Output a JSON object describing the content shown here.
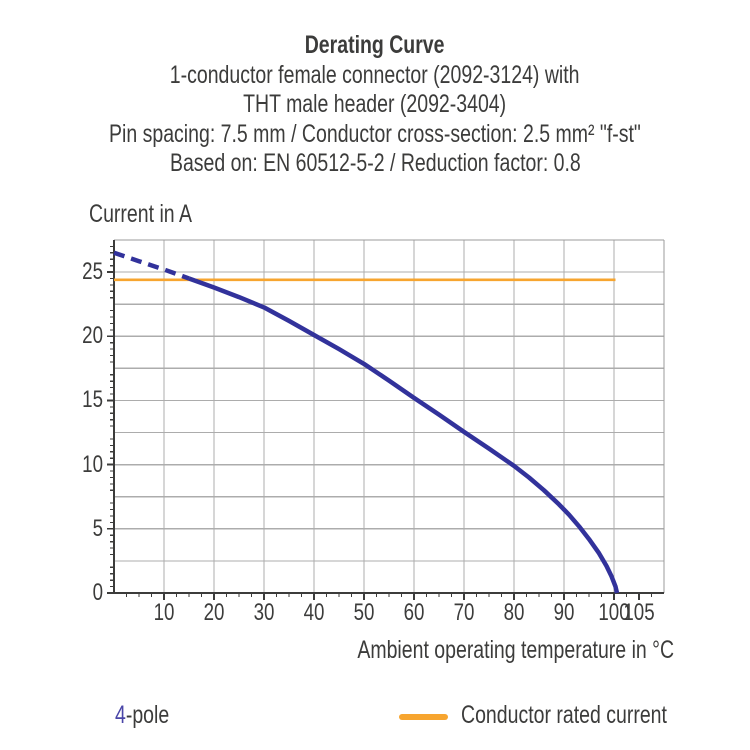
{
  "title": {
    "heading": "Derating Curve",
    "lines": [
      "1-conductor female connector (2092-3124) with",
      "THT male header (2092-3404)",
      "Pin spacing: 7.5 mm / Conductor cross-section: 2.5 mm² \"f-st\"",
      "Based on: EN 60512-5-2 / Reduction factor: 0.8"
    ]
  },
  "chart_data": {
    "type": "line",
    "title": "Derating Curve",
    "xlabel": "Ambient operating temperature in °C",
    "ylabel": "Current in A",
    "xlim": [
      0,
      110
    ],
    "ylim": [
      0,
      27.5
    ],
    "x_ticks": [
      10,
      20,
      30,
      40,
      50,
      60,
      70,
      80,
      90,
      100,
      105
    ],
    "y_ticks": [
      0,
      5,
      10,
      15,
      20,
      25
    ],
    "x_gridlines": [
      10,
      20,
      30,
      40,
      50,
      60,
      70,
      80,
      90,
      100
    ],
    "y_gridlines": [
      2.5,
      5,
      7.5,
      10,
      12.5,
      15,
      17.5,
      20,
      22.5,
      25
    ],
    "x_minor_step": 2.5,
    "y_minor_step": 0.5,
    "grid": true,
    "legend_position": "bottom",
    "series": [
      {
        "name": "4-pole (dashed low-temperature extension)",
        "style": "dashed",
        "color": "#32329B",
        "stroke_width": 4.5,
        "dash": "11 7",
        "points": [
          [
            0,
            26.5
          ],
          [
            5,
            25.85
          ],
          [
            10,
            25.2
          ],
          [
            15,
            24.5
          ]
        ]
      },
      {
        "name": "4-pole",
        "style": "solid",
        "color": "#32329B",
        "stroke_width": 4.5,
        "dash": null,
        "points": [
          [
            15,
            24.5
          ],
          [
            20,
            23.8
          ],
          [
            25,
            23.05
          ],
          [
            30,
            22.25
          ],
          [
            35,
            21.2
          ],
          [
            40,
            20.1
          ],
          [
            45,
            19.0
          ],
          [
            50,
            17.85
          ],
          [
            55,
            16.55
          ],
          [
            60,
            15.2
          ],
          [
            65,
            13.9
          ],
          [
            70,
            12.55
          ],
          [
            75,
            11.25
          ],
          [
            80,
            9.9
          ],
          [
            83,
            9.0
          ],
          [
            86,
            8.0
          ],
          [
            89,
            6.9
          ],
          [
            91,
            6.1
          ],
          [
            93,
            5.2
          ],
          [
            95,
            4.2
          ],
          [
            97,
            3.1
          ],
          [
            98.5,
            2.1
          ],
          [
            99.5,
            1.3
          ],
          [
            100.3,
            0.5
          ],
          [
            100.6,
            0
          ]
        ]
      },
      {
        "name": "Conductor rated current",
        "style": "solid",
        "color": "#F7A52F",
        "stroke_width": 2.6,
        "dash": null,
        "points": [
          [
            0,
            24.4
          ],
          [
            100.3,
            24.4
          ]
        ]
      }
    ]
  },
  "legend": {
    "pole_count": "4",
    "pole_suffix": "-pole",
    "rated_label": "Conductor rated current"
  },
  "colors": {
    "text": "#3C3C3B",
    "series_blue": "#32329B",
    "pole_number_blue": "#4A46A8",
    "rated_orange": "#F7A52F",
    "grid": "#ACACAC",
    "frame": "#9B9B9B",
    "axis": "#3C3C3B"
  }
}
